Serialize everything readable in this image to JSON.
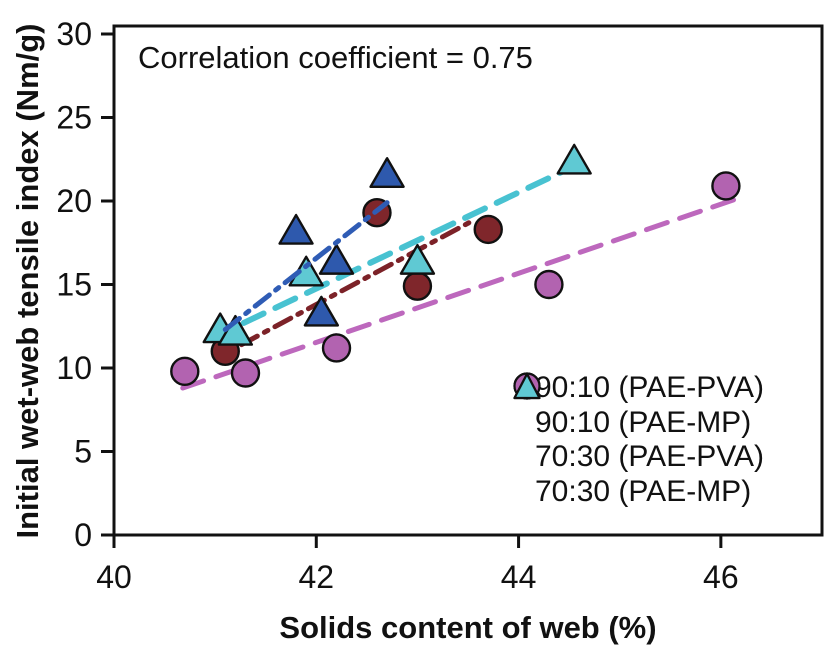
{
  "chart_data": {
    "type": "scatter",
    "annotation": "Correlation coefficient = 0.75",
    "xlabel": "Solids content of web (%)",
    "ylabel": "Initial wet-web tensile index (Nm/g)",
    "xlim": [
      40,
      47
    ],
    "ylim": [
      0,
      30
    ],
    "x_ticks": [
      40,
      42,
      44,
      46
    ],
    "y_ticks": [
      0,
      5,
      10,
      15,
      20,
      25,
      30
    ],
    "grid": false,
    "background": "#ffffff",
    "frame_color": "#111111",
    "marker_outline": "#111111",
    "legend_position": "inside lower right",
    "series": [
      {
        "name": "90:10 (PAE-PVA)",
        "marker": "circle",
        "color": "#7f262b",
        "line_color": "#7c2228",
        "line_style": "dash-dot",
        "points": [
          [
            41.1,
            11.0
          ],
          [
            42.6,
            19.3
          ],
          [
            43.0,
            14.9
          ],
          [
            43.7,
            18.3
          ]
        ],
        "trend": {
          "from": [
            41.26,
            11.4
          ],
          "to": [
            43.54,
            18.8
          ]
        }
      },
      {
        "name": "90:10 (PAE-MP)",
        "marker": "circle",
        "color": "#b263b0",
        "line_color": "#bd68bd",
        "line_style": "dash",
        "points": [
          [
            40.7,
            9.8
          ],
          [
            41.3,
            9.7
          ],
          [
            42.2,
            11.2
          ],
          [
            44.3,
            15.0
          ],
          [
            46.05,
            20.9
          ]
        ],
        "trend": {
          "from": [
            40.68,
            8.8
          ],
          "to": [
            46.19,
            20.2
          ]
        }
      },
      {
        "name": "70:30 (PAE-PVA)",
        "marker": "triangle",
        "color": "#2e59ad",
        "line_color": "#2f5cb5",
        "line_style": "dash-dot",
        "points": [
          [
            41.8,
            18.2
          ],
          [
            42.05,
            13.3
          ],
          [
            42.2,
            16.4
          ],
          [
            42.7,
            21.6
          ]
        ],
        "trend": {
          "from": [
            41.1,
            12.3
          ],
          "to": [
            42.7,
            19.9
          ]
        }
      },
      {
        "name": "70:30 (PAE-MP)",
        "marker": "triangle",
        "color": "#5fc9d3",
        "line_color": "#48c2d1",
        "line_style": "dash",
        "points": [
          [
            41.05,
            12.3
          ],
          [
            41.2,
            12.15
          ],
          [
            41.9,
            15.7
          ],
          [
            43.0,
            16.4
          ],
          [
            44.55,
            22.4
          ]
        ],
        "trend": {
          "from": [
            40.97,
            11.8
          ],
          "to": [
            44.57,
            22.15
          ]
        }
      }
    ]
  }
}
